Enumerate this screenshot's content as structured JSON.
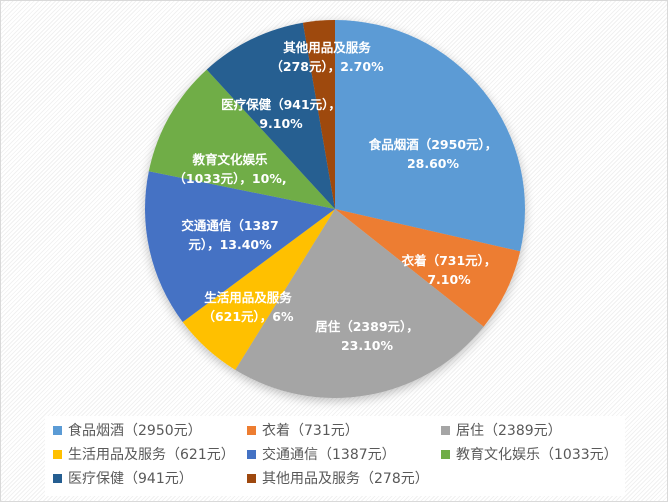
{
  "chart_data": {
    "type": "pie",
    "title": "",
    "unit": "元",
    "categories": [
      "食品烟酒",
      "衣着",
      "居住",
      "生活用品及服务",
      "交通通信",
      "教育文化娱乐",
      "医疗保健",
      "其他用品及服务"
    ],
    "values": [
      2950,
      731,
      2389,
      621,
      1387,
      1033,
      941,
      278
    ],
    "percentages": [
      28.6,
      7.1,
      23.1,
      6,
      13.4,
      10,
      9.1,
      2.7
    ],
    "colors": [
      "#5b9bd5",
      "#ed7d31",
      "#a5a5a5",
      "#ffc000",
      "#4472c4",
      "#70ad47",
      "#255e91",
      "#9e480e"
    ],
    "start_angle_deg": 0,
    "direction": "clockwise",
    "legend_position": "bottom",
    "data_labels": [
      {
        "line1": "食品烟酒（2950元），",
        "line2": "28.60%"
      },
      {
        "line1": "衣着（731元），",
        "line2": "7.10%"
      },
      {
        "line1": "居住（2389元），",
        "line2": "23.10%"
      },
      {
        "line1": "生活用品及服务",
        "line2": "（621元），6%"
      },
      {
        "line1": "交通通信（1387",
        "line2": "元），13.40%"
      },
      {
        "line1": "教育文化娱乐",
        "line2": "（1033元），10%,"
      },
      {
        "line1": "医疗保健（941元），",
        "line2": "9.10%"
      },
      {
        "line1": "其他用品及服务",
        "line2": "（278元），2.70%"
      }
    ]
  },
  "legend": [
    {
      "label": "食品烟酒（2950元）",
      "color": "#5b9bd5"
    },
    {
      "label": "衣着（731元）",
      "color": "#ed7d31"
    },
    {
      "label": "居住（2389元）",
      "color": "#a5a5a5"
    },
    {
      "label": "生活用品及服务（621元）",
      "color": "#ffc000"
    },
    {
      "label": "交通通信（1387元）",
      "color": "#4472c4"
    },
    {
      "label": "教育文化娱乐（1033元）",
      "color": "#70ad47"
    },
    {
      "label": "医疗保健（941元）",
      "color": "#255e91"
    },
    {
      "label": "其他用品及服务（278元）",
      "color": "#9e480e"
    }
  ]
}
